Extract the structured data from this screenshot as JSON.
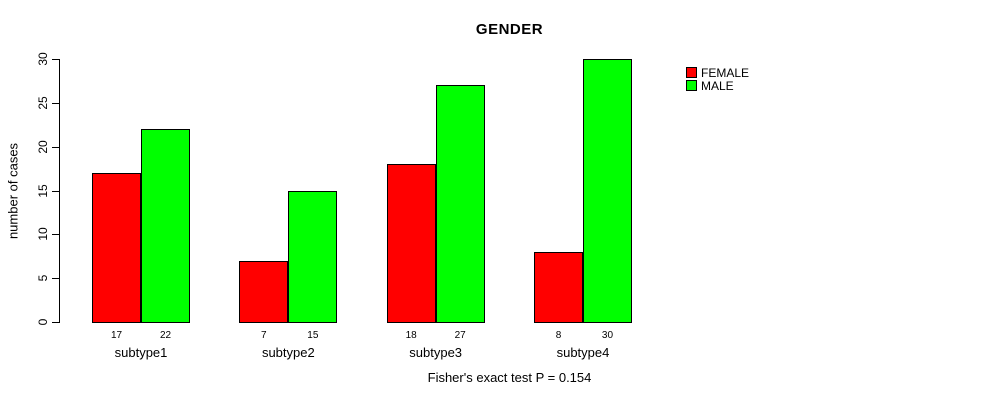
{
  "chart_data": {
    "type": "bar",
    "title": "GENDER",
    "xlabel": "",
    "ylabel": "number of cases",
    "categories": [
      "subtype1",
      "subtype2",
      "subtype3",
      "subtype4"
    ],
    "series": [
      {
        "name": "FEMALE",
        "color": "#ff0000",
        "values": [
          17,
          7,
          18,
          8
        ]
      },
      {
        "name": "MALE",
        "color": "#00ff00",
        "values": [
          22,
          15,
          27,
          30
        ]
      }
    ],
    "bar_value_labels": [
      [
        "17",
        "22"
      ],
      [
        "7",
        "15"
      ],
      [
        "18",
        "27"
      ],
      [
        "8",
        "30"
      ]
    ],
    "ylim": [
      0,
      30
    ],
    "yticks": [
      "0",
      "5",
      "10",
      "15",
      "20",
      "25",
      "30"
    ],
    "grid": false,
    "legend": {
      "position": "right",
      "entries": [
        {
          "label": "FEMALE",
          "color": "#ff0000"
        },
        {
          "label": "MALE",
          "color": "#00ff00"
        }
      ]
    },
    "annotation": "Fisher's exact test P = 0.154"
  }
}
